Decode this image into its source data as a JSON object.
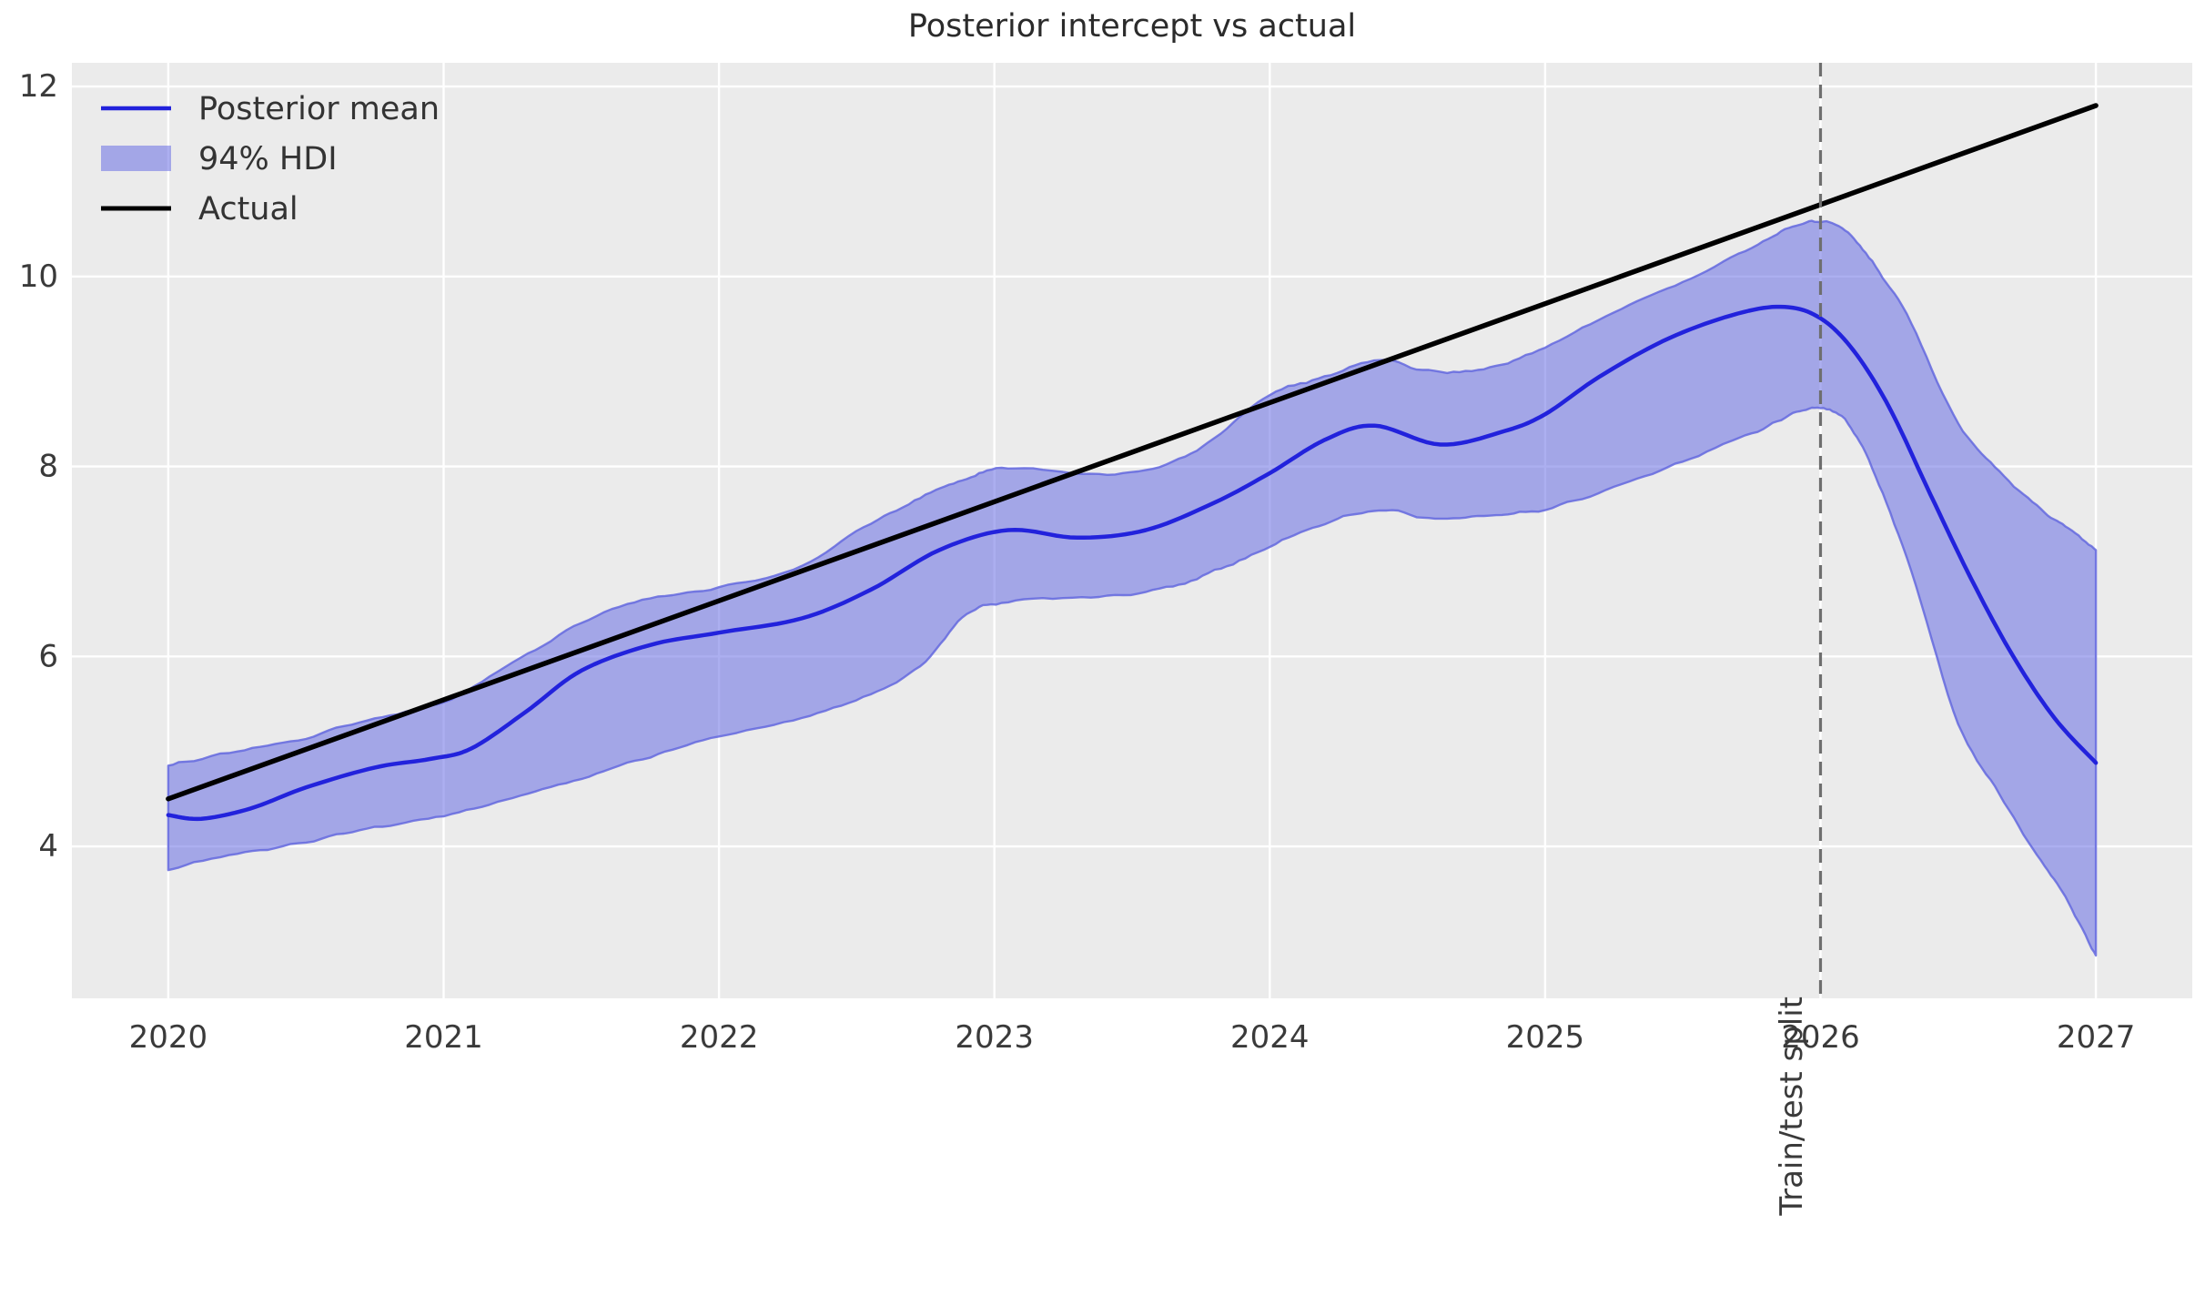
{
  "title": "Posterior intercept vs actual",
  "legend": {
    "items": [
      {
        "label": "Posterior mean",
        "type": "line",
        "color": "#2222dc"
      },
      {
        "label": "94% HDI",
        "type": "patch",
        "fill": "rgba(104,110,228,0.55)",
        "edge": "rgba(100,104,222,0.9)"
      },
      {
        "label": "Actual",
        "type": "line",
        "color": "#000000"
      }
    ]
  },
  "annotation": {
    "split_label": "Train/test split",
    "split_x": 2026
  },
  "colors": {
    "figure_bg": "#ffffff",
    "plot_bg": "#ebebeb",
    "grid": "#ffffff",
    "band_fill": "rgba(104,110,228,0.55)",
    "band_edge": "rgba(100,104,222,0.85)",
    "mean_line": "#2222dc",
    "actual_line": "#000000",
    "split_line": "#6e6e6e",
    "tick_text": "#3a3a3a"
  },
  "chart_data": {
    "type": "line",
    "title": "Posterior intercept vs actual",
    "xlabel": "",
    "ylabel": "",
    "xlim": [
      2019.65,
      2027.35
    ],
    "ylim": [
      2.4,
      12.25
    ],
    "x_ticks": [
      2020,
      2021,
      2022,
      2023,
      2024,
      2025,
      2026,
      2027
    ],
    "y_ticks": [
      4,
      6,
      8,
      10,
      12
    ],
    "grid": true,
    "legend_position": "upper left",
    "vline": {
      "x": 2026,
      "style": "dashed",
      "color": "#6e6e6e",
      "label": "Train/test split"
    },
    "series": [
      {
        "name": "Actual",
        "type": "line",
        "color": "#000000",
        "x": [
          2020,
          2027
        ],
        "y": [
          4.5,
          11.8
        ]
      },
      {
        "name": "Posterior mean",
        "type": "line",
        "color": "#2222dc",
        "x": [
          2020.0,
          2020.12,
          2020.3,
          2020.5,
          2020.75,
          2020.95,
          2021.1,
          2021.3,
          2021.5,
          2021.75,
          2022.0,
          2022.3,
          2022.55,
          2022.8,
          2023.05,
          2023.3,
          2023.55,
          2023.8,
          2024.0,
          2024.2,
          2024.38,
          2024.62,
          2024.85,
          2025.0,
          2025.2,
          2025.45,
          2025.7,
          2025.87,
          2026.0,
          2026.12,
          2026.25,
          2026.4,
          2026.55,
          2026.7,
          2026.85,
          2027.0
        ],
        "y": [
          4.33,
          4.29,
          4.4,
          4.62,
          4.83,
          4.92,
          5.03,
          5.42,
          5.85,
          6.12,
          6.25,
          6.4,
          6.7,
          7.12,
          7.33,
          7.25,
          7.33,
          7.62,
          7.93,
          8.28,
          8.43,
          8.23,
          8.37,
          8.55,
          8.95,
          9.35,
          9.61,
          9.68,
          9.56,
          9.22,
          8.62,
          7.7,
          6.8,
          6.0,
          5.35,
          4.88
        ]
      },
      {
        "name": "94% HDI",
        "type": "band",
        "fill": "rgba(104,110,228,0.55)",
        "edge": "rgba(100,104,222,0.85)",
        "x": [
          2020.0,
          2020.25,
          2020.5,
          2020.75,
          2021.0,
          2021.25,
          2021.5,
          2021.75,
          2022.0,
          2022.3,
          2022.55,
          2022.75,
          2022.9,
          2023.05,
          2023.35,
          2023.6,
          2023.8,
          2024.0,
          2024.2,
          2024.4,
          2024.6,
          2024.8,
          2025.0,
          2025.25,
          2025.5,
          2025.75,
          2025.9,
          2026.0,
          2026.1,
          2026.2,
          2026.33,
          2026.5,
          2026.65,
          2026.8,
          2026.9,
          2027.0
        ],
        "lower": [
          3.75,
          3.92,
          4.05,
          4.2,
          4.32,
          4.5,
          4.72,
          4.95,
          5.15,
          5.35,
          5.6,
          5.95,
          6.45,
          6.57,
          6.63,
          6.7,
          6.9,
          7.15,
          7.4,
          7.55,
          7.45,
          7.48,
          7.55,
          7.78,
          8.05,
          8.35,
          8.55,
          8.62,
          8.45,
          7.9,
          6.89,
          5.3,
          4.55,
          3.85,
          3.4,
          2.85
        ],
        "upper": [
          4.85,
          5.0,
          5.15,
          5.35,
          5.52,
          5.92,
          6.35,
          6.62,
          6.72,
          6.95,
          7.4,
          7.7,
          7.88,
          7.98,
          7.92,
          8.0,
          8.3,
          8.75,
          8.95,
          9.12,
          9.0,
          9.05,
          9.25,
          9.62,
          9.95,
          10.3,
          10.52,
          10.58,
          10.45,
          10.1,
          9.5,
          8.45,
          7.95,
          7.55,
          7.35,
          7.12
        ]
      }
    ]
  }
}
